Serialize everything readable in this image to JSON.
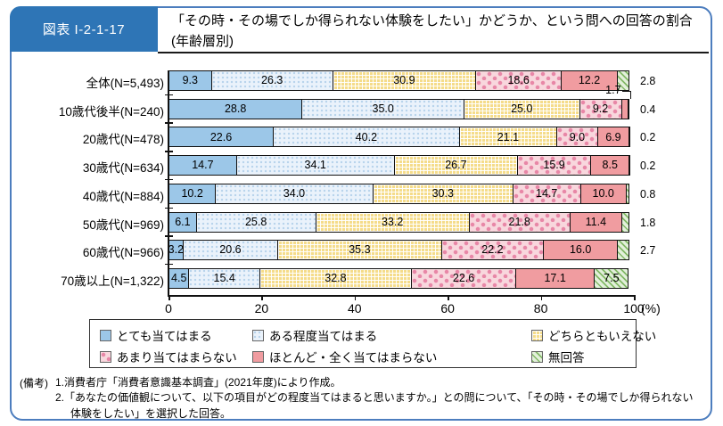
{
  "figure": {
    "id_label": "図表 I-2-1-17",
    "title": "「その時・その場でしか得られない体験をしたい」かどうか、という問への回答の割合(年齢層別)"
  },
  "chart_data": {
    "type": "bar",
    "orientation": "horizontal",
    "stacked": true,
    "categories": [
      "全体(N=5,493)",
      "10歳代後半(N=240)",
      "20歳代(N=478)",
      "30歳代(N=634)",
      "40歳代(N=884)",
      "50歳代(N=969)",
      "60歳代(N=966)",
      "70歳以上(N=1,322)"
    ],
    "series": [
      {
        "name": "とても当てはまる",
        "color": "#9CC7E8",
        "pattern": "solid",
        "values": [
          9.3,
          28.8,
          22.6,
          14.7,
          10.2,
          6.1,
          3.2,
          4.5
        ]
      },
      {
        "name": "ある程度当てはまる",
        "color": "#EAF2FB",
        "pattern": "fine-dots",
        "values": [
          26.3,
          35.0,
          40.2,
          34.1,
          34.0,
          25.8,
          20.6,
          15.4
        ]
      },
      {
        "name": "どちらともいえない",
        "color": "#F5DC8A",
        "pattern": "grid",
        "values": [
          30.9,
          25.0,
          21.1,
          26.7,
          30.3,
          33.2,
          35.3,
          32.8
        ]
      },
      {
        "name": "あまり当てはまらない",
        "color": "#F8D7DD",
        "pattern": "dots",
        "values": [
          18.6,
          9.2,
          9.0,
          15.9,
          14.7,
          21.8,
          22.2,
          22.6
        ]
      },
      {
        "name": "ほとんど・全く当てはまらない",
        "color": "#F09CA0",
        "pattern": "solid",
        "values": [
          12.2,
          1.7,
          6.9,
          8.5,
          10.0,
          11.4,
          16.0,
          17.1
        ]
      },
      {
        "name": "無回答",
        "color": "#E3F0DB",
        "pattern": "diagonal-hatch",
        "values": [
          2.8,
          0.4,
          0.2,
          0.2,
          0.8,
          1.8,
          2.7,
          7.5
        ]
      }
    ],
    "x_ticks": [
      0,
      20,
      40,
      60,
      80,
      100
    ],
    "x_unit": "(%)",
    "xlim": [
      0,
      100
    ],
    "legend_position": "bottom",
    "grid": false
  },
  "notes": {
    "prefix": "(備考)",
    "items": [
      "1.消費者庁「消費者意識基本調査」(2021年度)により作成。",
      "2.「あなたの価値観について、以下の項目がどの程度当てはまると思いますか。」との問について、「その時・その場でしか得られない体験をしたい」を選択した回答。"
    ]
  },
  "colors": {
    "header_badge": "#2E75B6",
    "frame_border": "#4C7DBE",
    "axis": "#111111"
  }
}
